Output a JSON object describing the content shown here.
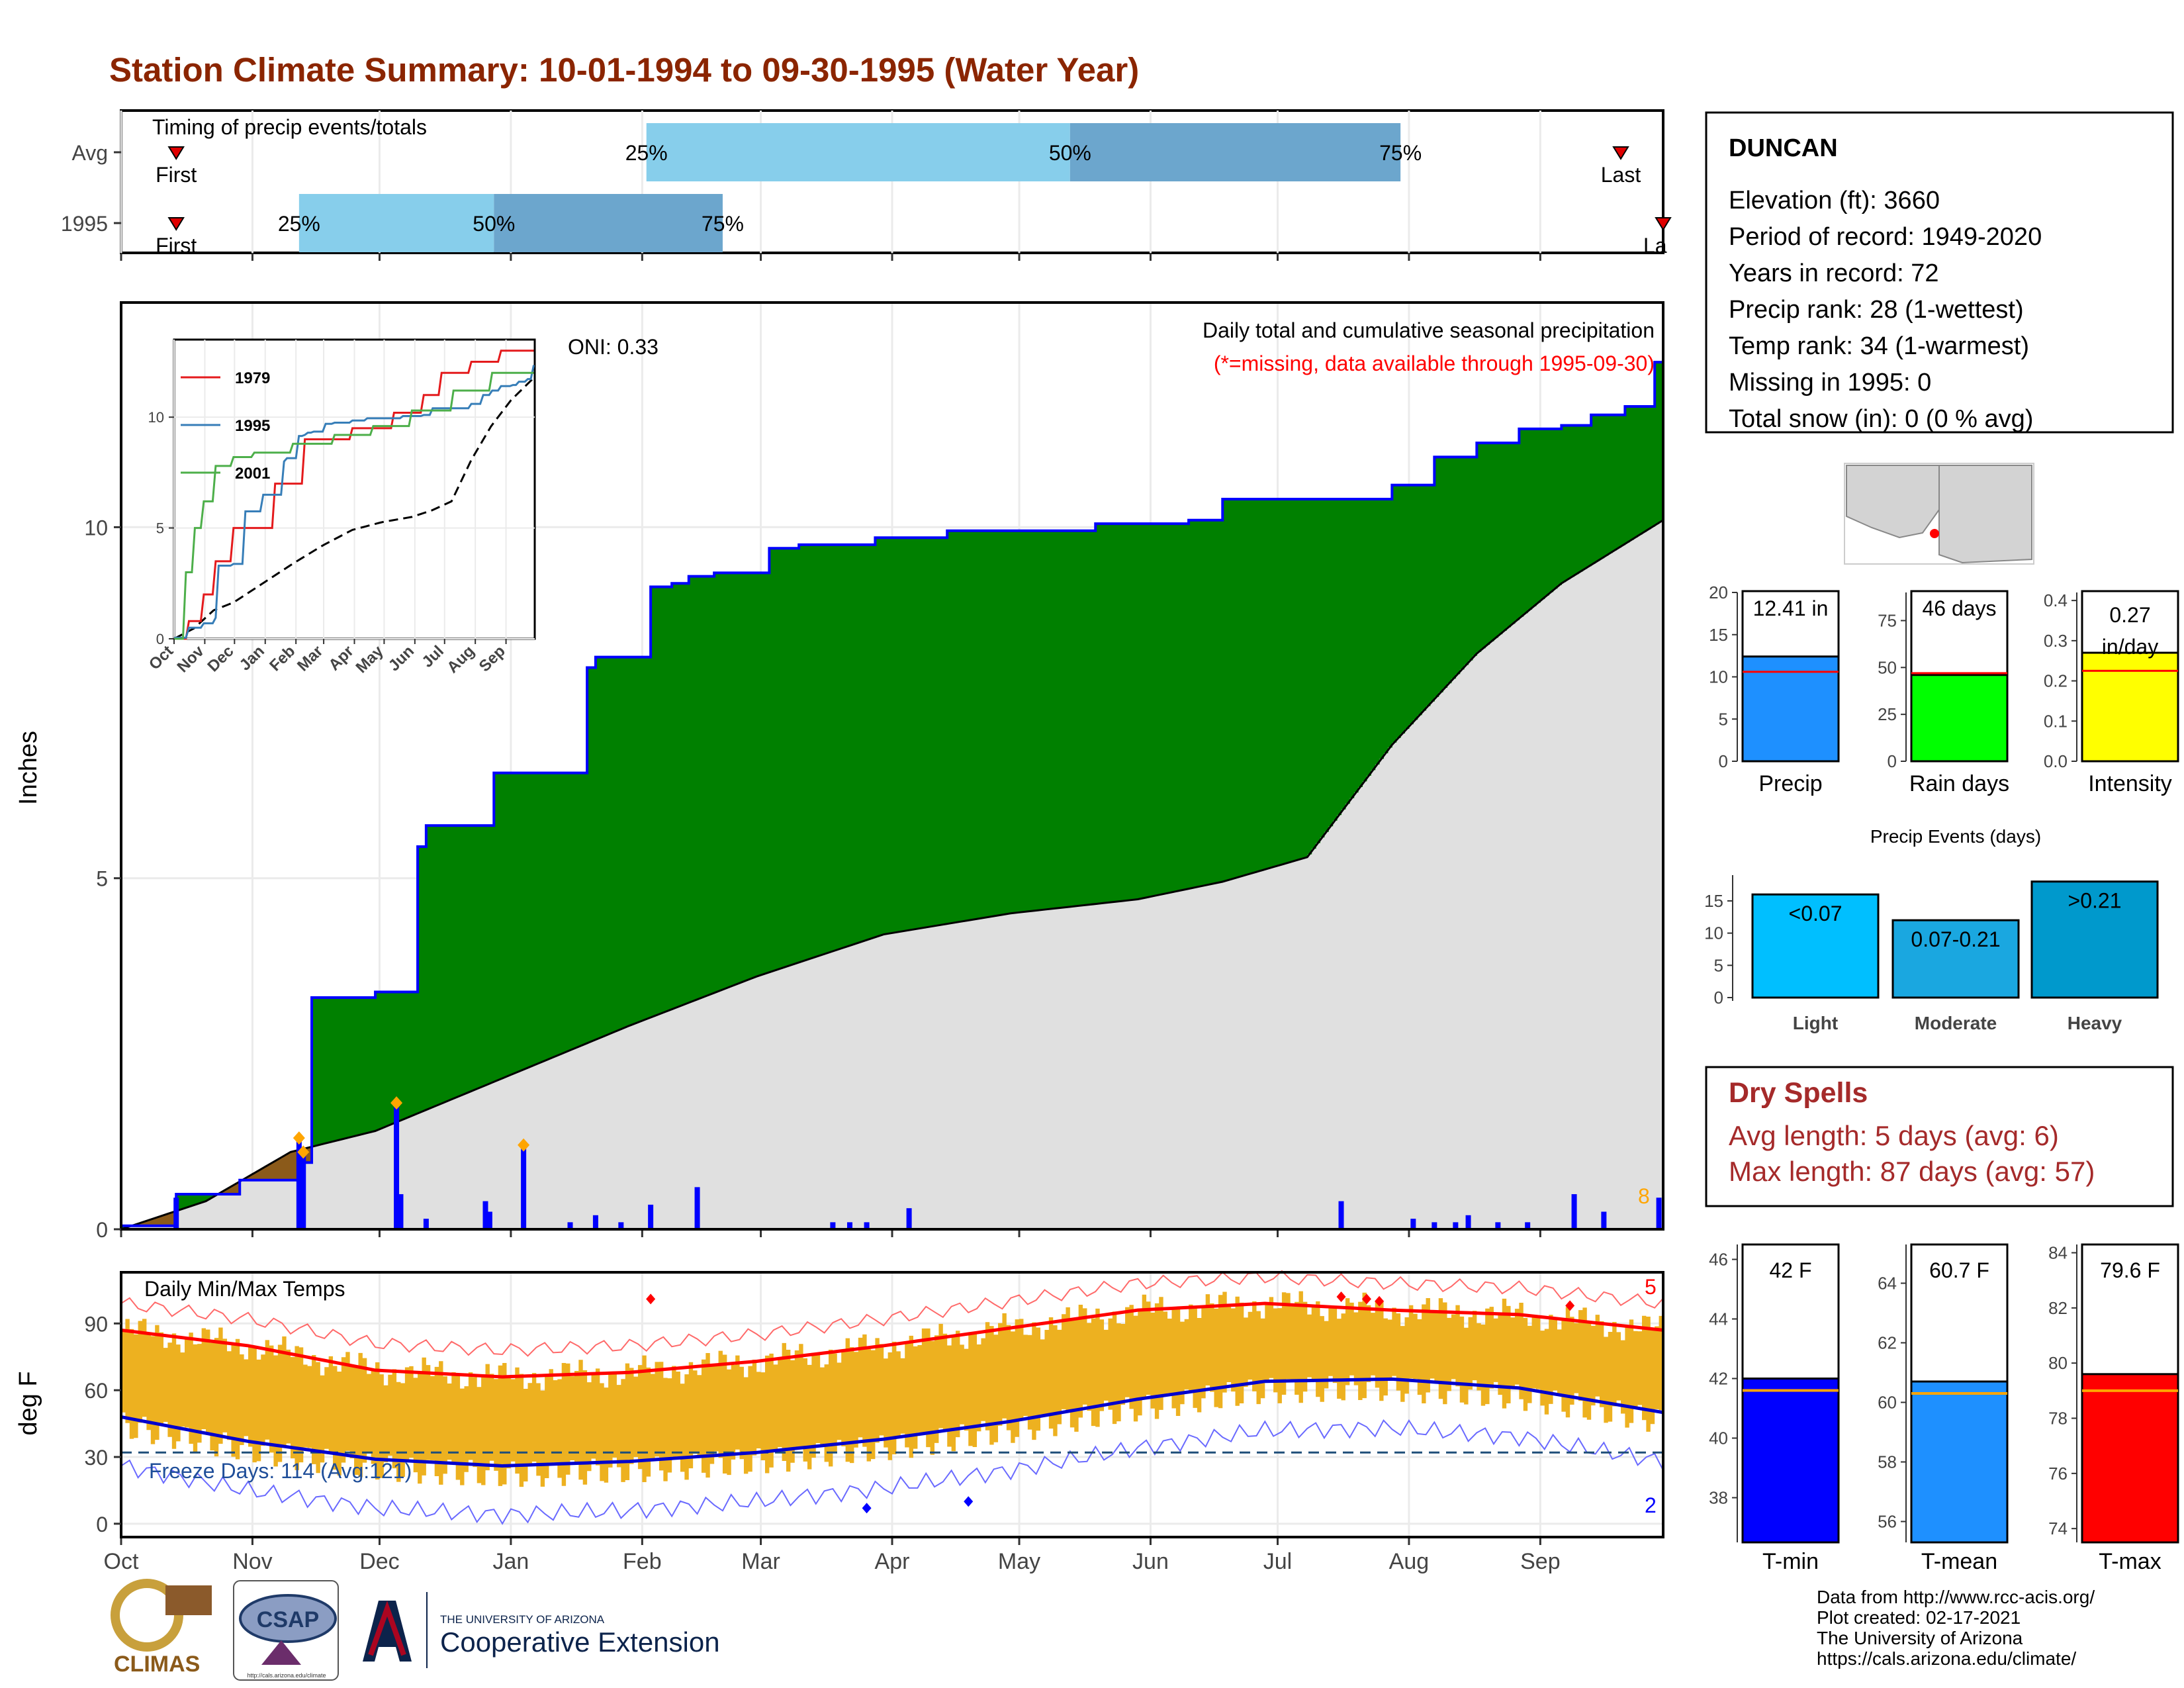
{
  "title": "Station Climate Summary: 10-01-1994 to 09-30-1995 (Water Year)",
  "timing": {
    "label": "Timing of precip events/totals",
    "rows": [
      {
        "label": "Avg",
        "first_label": "First",
        "last_label": "Last",
        "p25_label": "25%",
        "p50_label": "50%",
        "p75_label": "75%",
        "first_day": 13,
        "p25_day": 124,
        "p50_day": 224,
        "p75_day": 302,
        "last_day": 354
      },
      {
        "label": "1995",
        "first_label": "First",
        "last_label": "La",
        "p25_label": "25%",
        "p50_label": "50%",
        "p75_label": "75%",
        "first_day": 13,
        "p25_day": 42,
        "p50_day": 88,
        "p75_day": 142,
        "last_day": 364
      }
    ]
  },
  "precip_panel": {
    "caption": "Daily total and cumulative seasonal precipitation",
    "missing_note": "(*=missing, data available through 1995-09-30)",
    "oni": "ONI: 0.33",
    "ylabel": "Inches",
    "yticks": [
      "0",
      "5",
      "10"
    ],
    "missing_count": "8",
    "colors": {
      "above_avg": "#008000",
      "below_avg": "#8B5A1A",
      "avg_fill": "#E0E0E0",
      "cumulative_line": "#0000FF",
      "daily_bar": "#0000FF",
      "extreme_marker": "#FFA500"
    }
  },
  "inset": {
    "yticks": [
      "0",
      "5",
      "10"
    ],
    "xticks": [
      "Oct",
      "Nov",
      "Dec",
      "Jan",
      "Feb",
      "Mar",
      "Apr",
      "May",
      "Jun",
      "Jul",
      "Aug",
      "Sep"
    ],
    "legend": [
      {
        "name": "1979",
        "color": "#E41A1C"
      },
      {
        "name": "1995",
        "color": "#377EB8"
      },
      {
        "name": "2001",
        "color": "#4DAF4A"
      }
    ]
  },
  "temp_panel": {
    "label": "Daily Min/Max Temps",
    "ylabel": "deg F",
    "yticks": [
      "0",
      "30",
      "60",
      "90"
    ],
    "freeze_text": "Freeze Days: 114 (Avg:121)",
    "max_records": "5",
    "min_records": "2",
    "colors": {
      "range_bar": "#EDB120",
      "avg_max": "#FF0000",
      "avg_min": "#0000CD",
      "record_max": "#FF6A6A",
      "record_min": "#6A6AFF",
      "freeze_line": "#1F4E79"
    }
  },
  "months": [
    "Oct",
    "Nov",
    "Dec",
    "Jan",
    "Feb",
    "Mar",
    "Apr",
    "May",
    "Jun",
    "Jul",
    "Aug",
    "Sep"
  ],
  "station": {
    "name": "DUNCAN",
    "lines": [
      "Elevation (ft): 3660",
      "Period of record: 1949-2020",
      "Years in record: 72",
      "Precip rank: 28 (1-wettest)",
      "Temp rank: 34 (1-warmest)",
      "Missing in 1995: 0",
      "Total snow (in): 0 (0 % avg)"
    ]
  },
  "stat_bars": [
    {
      "label": "Precip",
      "value_text": "12.41 in",
      "value": 12.41,
      "avg": 10.6,
      "max": 20,
      "yticks": [
        "0",
        "5",
        "10",
        "15",
        "20"
      ],
      "color": "#1E90FF"
    },
    {
      "label": "Rain days",
      "value_text": "46 days",
      "value": 46,
      "avg": 47,
      "max": 90,
      "yticks": [
        "0",
        "25",
        "50",
        "75"
      ],
      "color": "#00FF00"
    },
    {
      "label": "Intensity",
      "value_text": "0.27\nin/day",
      "value": 0.27,
      "avg": 0.225,
      "max": 0.42,
      "yticks": [
        "0.0",
        "0.1",
        "0.2",
        "0.3",
        "0.4"
      ],
      "color": "#FFFF00"
    }
  ],
  "precip_events": {
    "title": "Precip Events (days)",
    "yticks": [
      "0",
      "5",
      "10",
      "15"
    ],
    "bars": [
      {
        "label": "Light",
        "range": "<0.07",
        "value": 16,
        "color": "#00BFFF"
      },
      {
        "label": "Moderate",
        "range": "0.07-0.21",
        "value": 12,
        "color": "#1AA7E0"
      },
      {
        "label": "Heavy",
        "range": ">0.21",
        "value": 18,
        "color": "#0099CC"
      }
    ]
  },
  "dry_spells": {
    "title": "Dry Spells",
    "avg_line": "Avg length: 5 days (avg: 6)",
    "max_line": "Max length: 87 days (avg: 57)"
  },
  "temp_bars": [
    {
      "label": "T-min",
      "value_text": "42 F",
      "value": 42,
      "avg": 41.6,
      "min": 36.5,
      "max": 46.5,
      "yticks": [
        "38",
        "40",
        "42",
        "44",
        "46"
      ],
      "color": "#0000FF"
    },
    {
      "label": "T-mean",
      "value_text": "60.7 F",
      "value": 60.7,
      "avg": 60.3,
      "min": 55.3,
      "max": 65.3,
      "yticks": [
        "56",
        "58",
        "60",
        "62",
        "64"
      ],
      "color": "#1E90FF"
    },
    {
      "label": "T-max",
      "value_text": "79.6 F",
      "value": 79.6,
      "avg": 79.0,
      "min": 73.5,
      "max": 84.3,
      "yticks": [
        "74",
        "76",
        "78",
        "80",
        "82",
        "84"
      ],
      "color": "#FF0000"
    }
  ],
  "footer": {
    "lines": [
      "Data from http://www.rcc-acis.org/",
      "Plot created: 02-17-2021",
      "The University of Arizona",
      "https://cals.arizona.edu/climate/"
    ],
    "logos": {
      "climas": "CLIMAS",
      "csap": "CSAP",
      "csap_url": "http://cals.arizona.edu/climate",
      "ua_top": "THE UNIVERSITY OF ARIZONA",
      "ua_bottom": "Cooperative Extension"
    }
  },
  "chart_data": [
    {
      "type": "area",
      "title": "Daily total and cumulative seasonal precipitation",
      "ylabel": "Inches",
      "ylim": [
        0,
        13.2
      ],
      "x_unit": "day of water year (Oct 1 = 0)",
      "series": [
        {
          "name": "1995",
          "x": [
            0,
            13,
            28,
            42,
            45,
            60,
            70,
            72,
            88,
            110,
            112,
            125,
            130,
            134,
            140,
            153,
            160,
            178,
            195,
            230,
            252,
            260,
            300,
            310,
            320,
            330,
            340,
            347,
            355,
            362,
            364
          ],
          "y": [
            0.05,
            0.5,
            0.7,
            0.95,
            3.3,
            3.38,
            5.45,
            5.75,
            6.5,
            8.0,
            8.15,
            9.15,
            9.2,
            9.3,
            9.35,
            9.7,
            9.75,
            9.85,
            9.95,
            10.05,
            10.1,
            10.4,
            10.6,
            11.0,
            11.2,
            11.4,
            11.45,
            11.6,
            11.72,
            12.35,
            12.41
          ]
        },
        {
          "x": [
            0,
            20,
            40,
            60,
            80,
            100,
            120,
            150,
            180,
            210,
            240,
            260,
            280,
            300,
            320,
            340,
            364
          ],
          "y": [
            0.0,
            0.4,
            1.1,
            1.4,
            1.9,
            2.4,
            2.9,
            3.6,
            4.2,
            4.5,
            4.7,
            4.95,
            5.3,
            6.9,
            8.2,
            9.2,
            10.1
          ]
        }
      ],
      "daily_totals": [
        {
          "day": 13,
          "inches": 0.45
        },
        {
          "day": 42,
          "inches": 1.3
        },
        {
          "day": 43,
          "inches": 1.1
        },
        {
          "day": 65,
          "inches": 1.8
        },
        {
          "day": 66,
          "inches": 0.5
        },
        {
          "day": 72,
          "inches": 0.15
        },
        {
          "day": 86,
          "inches": 0.4
        },
        {
          "day": 87,
          "inches": 0.25
        },
        {
          "day": 95,
          "inches": 1.2
        },
        {
          "day": 106,
          "inches": 0.1
        },
        {
          "day": 112,
          "inches": 0.2
        },
        {
          "day": 118,
          "inches": 0.1
        },
        {
          "day": 125,
          "inches": 0.35
        },
        {
          "day": 136,
          "inches": 0.6
        },
        {
          "day": 168,
          "inches": 0.1
        },
        {
          "day": 172,
          "inches": 0.1
        },
        {
          "day": 176,
          "inches": 0.1
        },
        {
          "day": 186,
          "inches": 0.3
        },
        {
          "day": 288,
          "inches": 0.4
        },
        {
          "day": 305,
          "inches": 0.15
        },
        {
          "day": 310,
          "inches": 0.1
        },
        {
          "day": 315,
          "inches": 0.1
        },
        {
          "day": 318,
          "inches": 0.2
        },
        {
          "day": 325,
          "inches": 0.1
        },
        {
          "day": 332,
          "inches": 0.1
        },
        {
          "day": 343,
          "inches": 0.5
        },
        {
          "day": 350,
          "inches": 0.25
        },
        {
          "day": 363,
          "inches": 0.45
        }
      ]
    },
    {
      "type": "line",
      "title": "Daily Min/Max Temps",
      "ylabel": "deg F",
      "ylim": [
        -6,
        113
      ],
      "x_unit": "day of water year (Oct 1 = 0)",
      "series": [
        {
          "x": [
            0,
            30,
            60,
            90,
            120,
            150,
            180,
            210,
            240,
            270,
            300,
            330,
            364
          ],
          "y": [
            87,
            80,
            69,
            66,
            68,
            73,
            80,
            88,
            96,
            99,
            96,
            94,
            87
          ]
        },
        {
          "x": [
            0,
            30,
            60,
            90,
            120,
            150,
            180,
            210,
            240,
            270,
            300,
            330,
            364
          ],
          "y": [
            48,
            37,
            29,
            26,
            28,
            32,
            38,
            46,
            56,
            64,
            65,
            61,
            50
          ]
        }
      ]
    }
  ]
}
